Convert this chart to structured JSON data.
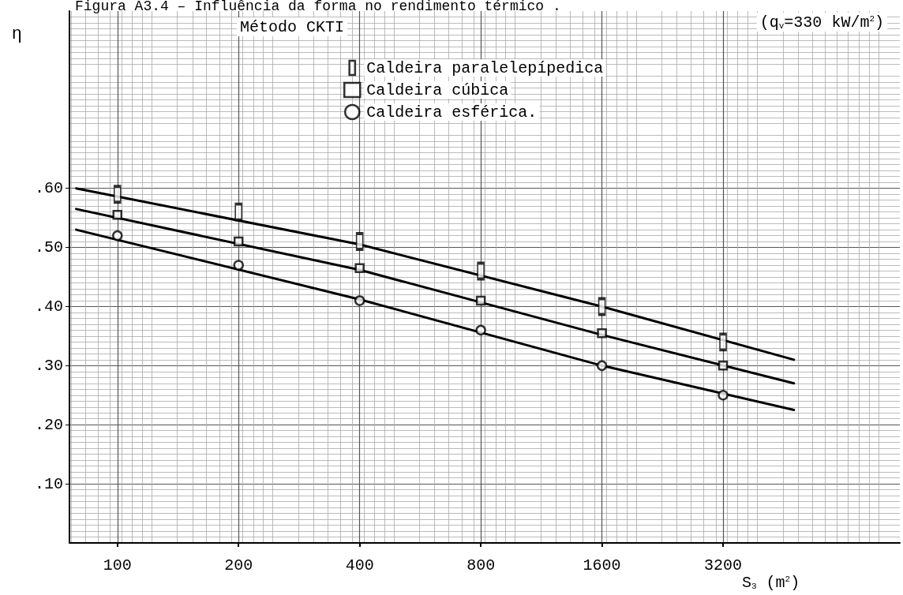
{
  "chart_data": {
    "type": "scatter",
    "title": "Figura A3.4 – Influência da forma no rendimento térmico .",
    "xlabel": "S$_{3}$ (m$^{2}$)",
    "ylabel": "η",
    "annotations": [
      "Método CKTI",
      "(q$_{v}$=330 kW/m$^{2}$)"
    ],
    "log": "x",
    "grid": true,
    "legend": "top",
    "xlim": [
      76,
      8800
    ],
    "xticks": [
      100,
      200,
      400,
      800,
      1600,
      3200
    ],
    "ylim": [
      0,
      0.9
    ],
    "yticks": [
      {
        "value": 0.1,
        "label": ".10"
      },
      {
        "value": 0.2,
        "label": ".20"
      },
      {
        "value": 0.3,
        "label": ".30"
      },
      {
        "value": 0.4,
        "label": ".40"
      },
      {
        "value": 0.5,
        "label": ".50"
      },
      {
        "value": 0.6,
        "label": ".60"
      }
    ],
    "x": [
      100,
      200,
      400,
      800,
      1600,
      3200
    ],
    "series": [
      {
        "name": "Caldeira paralelepípedica",
        "color": "#000000",
        "marker": "square",
        "values": [
          0.59,
          0.56,
          0.51,
          0.46,
          0.4,
          0.34
        ]
      },
      {
        "name": "Caldeira cúbica",
        "color": "#000000",
        "marker": "square",
        "values": [
          0.555,
          0.51,
          0.465,
          0.41,
          0.355,
          0.3
        ]
      },
      {
        "name": "Caldeira esférica.",
        "color": "#000000",
        "marker": "circle",
        "values": [
          0.52,
          0.47,
          0.41,
          0.36,
          0.3,
          0.25
        ]
      },
      {
        "type": "line",
        "color": "#000000",
        "marker": "none",
        "line_style": "solid",
        "x": [
          79,
          400,
          1600,
          4800
        ],
        "values": [
          0.6,
          0.505,
          0.4,
          0.31
        ]
      },
      {
        "type": "line",
        "color": "#000000",
        "marker": "none",
        "line_style": "solid",
        "x": [
          79,
          400,
          1600,
          4800
        ],
        "values": [
          0.565,
          0.462,
          0.352,
          0.27
        ]
      },
      {
        "type": "line",
        "color": "#000000",
        "marker": "none",
        "line_style": "solid",
        "x": [
          79,
          400,
          1600,
          4800
        ],
        "values": [
          0.53,
          0.412,
          0.3,
          0.225
        ]
      }
    ]
  }
}
